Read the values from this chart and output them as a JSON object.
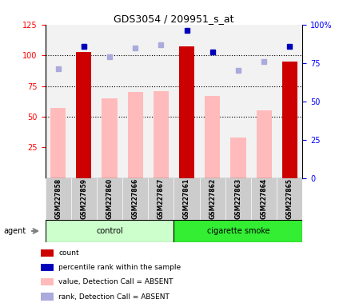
{
  "title": "GDS3054 / 209951_s_at",
  "samples": [
    "GSM227858",
    "GSM227859",
    "GSM227860",
    "GSM227866",
    "GSM227867",
    "GSM227861",
    "GSM227862",
    "GSM227863",
    "GSM227864",
    "GSM227865"
  ],
  "groups": [
    "control",
    "control",
    "control",
    "control",
    "control",
    "cigarette smoke",
    "cigarette smoke",
    "cigarette smoke",
    "cigarette smoke",
    "cigarette smoke"
  ],
  "count_values": [
    null,
    103,
    null,
    null,
    null,
    107,
    null,
    null,
    null,
    95
  ],
  "count_absent_values": [
    57,
    null,
    65,
    70,
    71,
    null,
    67,
    33,
    55,
    null
  ],
  "percentile_rank": [
    null,
    86,
    null,
    null,
    null,
    96,
    82,
    null,
    null,
    86
  ],
  "rank_absent": [
    71,
    86,
    79,
    85,
    87,
    null,
    null,
    70,
    76,
    null
  ],
  "ylim_left": [
    0,
    125
  ],
  "yticks_left": [
    25,
    50,
    75,
    100,
    125
  ],
  "ytick_labels_right": [
    "0",
    "25",
    "50",
    "75",
    "100%"
  ],
  "count_color": "#cc0000",
  "absent_value_color": "#ffbbbb",
  "percentile_color": "#0000bb",
  "absent_rank_color": "#aaaadd",
  "control_bg_light": "#ccffcc",
  "smoke_bg_bright": "#33ee33",
  "agent_label": "agent",
  "control_label": "control",
  "smoke_label": "cigarette smoke",
  "legend_items": [
    {
      "color": "#cc0000",
      "label": "count"
    },
    {
      "color": "#0000bb",
      "label": "percentile rank within the sample"
    },
    {
      "color": "#ffbbbb",
      "label": "value, Detection Call = ABSENT"
    },
    {
      "color": "#aaaadd",
      "label": "rank, Detection Call = ABSENT"
    }
  ]
}
